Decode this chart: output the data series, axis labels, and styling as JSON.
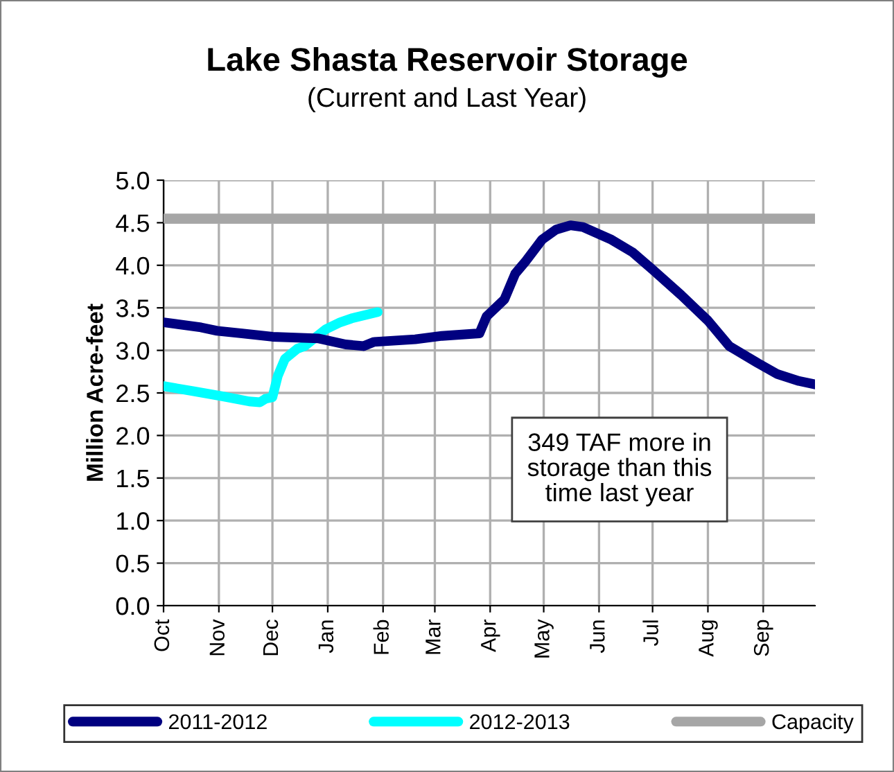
{
  "chart_data": {
    "type": "line",
    "title": "Lake Shasta Reservoir Storage",
    "subtitle": "(Current and Last Year)",
    "ylabel": "Million Acre-feet",
    "xlim": [
      "2011-10-01",
      "2012-09-30"
    ],
    "xticks": [
      {
        "value": "2011-10-01",
        "label": "Oct"
      },
      {
        "value": "2011-11-01",
        "label": "Nov"
      },
      {
        "value": "2011-12-01",
        "label": "Dec"
      },
      {
        "value": "2012-01-01",
        "label": "Jan"
      },
      {
        "value": "2012-02-01",
        "label": "Feb"
      },
      {
        "value": "2012-03-01",
        "label": "Mar"
      },
      {
        "value": "2012-04-01",
        "label": "Apr"
      },
      {
        "value": "2012-05-01",
        "label": "May"
      },
      {
        "value": "2012-06-01",
        "label": "Jun"
      },
      {
        "value": "2012-07-01",
        "label": "Jul"
      },
      {
        "value": "2012-08-01",
        "label": "Aug"
      },
      {
        "value": "2012-09-01",
        "label": "Sep"
      }
    ],
    "ylim": [
      0,
      5
    ],
    "yticks": [
      {
        "value": 0,
        "label": "0.0"
      },
      {
        "value": 0.5,
        "label": "0.5"
      },
      {
        "value": 1,
        "label": "1.0"
      },
      {
        "value": 1.5,
        "label": "1.5"
      },
      {
        "value": 2,
        "label": "2.0"
      },
      {
        "value": 2.5,
        "label": "2.5"
      },
      {
        "value": 3,
        "label": "3.0"
      },
      {
        "value": 3.5,
        "label": "3.5"
      },
      {
        "value": 4,
        "label": "4.0"
      },
      {
        "value": 4.5,
        "label": "4.5"
      },
      {
        "value": 5,
        "label": "5.0"
      }
    ],
    "grid": true,
    "legend": "bottom",
    "marker": "none",
    "line_style": "solid",
    "series": [
      {
        "name": "2011-2012",
        "color": "#000080",
        "x": [
          "2011-10-01",
          "2011-10-22",
          "2011-10-31",
          "2011-11-14",
          "2011-12-01",
          "2011-12-27",
          "2012-01-11",
          "2012-01-21",
          "2012-01-27",
          "2012-02-19",
          "2012-03-05",
          "2012-03-26",
          "2012-03-30",
          "2012-04-04",
          "2012-04-09",
          "2012-04-15",
          "2012-04-21",
          "2012-04-30",
          "2012-05-08",
          "2012-05-16",
          "2012-05-23",
          "2012-06-08",
          "2012-06-20",
          "2012-07-01",
          "2012-07-17",
          "2012-08-01",
          "2012-08-13",
          "2012-08-29",
          "2012-09-09",
          "2012-09-21",
          "2012-09-30"
        ],
        "values": [
          3.33,
          3.27,
          3.23,
          3.2,
          3.16,
          3.14,
          3.07,
          3.05,
          3.1,
          3.13,
          3.17,
          3.2,
          3.4,
          3.5,
          3.6,
          3.9,
          4.05,
          4.3,
          4.42,
          4.47,
          4.45,
          4.3,
          4.15,
          3.95,
          3.65,
          3.35,
          3.05,
          2.85,
          2.72,
          2.64,
          2.6
        ]
      },
      {
        "name": "2012-2013",
        "color": "#00ffff",
        "x": [
          "2011-10-01",
          "2011-10-18",
          "2011-11-03",
          "2011-11-18",
          "2011-11-24",
          "2011-11-27",
          "2011-12-01",
          "2011-12-04",
          "2011-12-08",
          "2011-12-15",
          "2011-12-19",
          "2011-12-25",
          "2011-12-31",
          "2012-01-08",
          "2012-01-15",
          "2012-01-23",
          "2012-01-29"
        ],
        "values": [
          2.58,
          2.52,
          2.46,
          2.4,
          2.39,
          2.43,
          2.45,
          2.7,
          2.9,
          3.02,
          3.05,
          3.15,
          3.25,
          3.33,
          3.38,
          3.42,
          3.45
        ]
      },
      {
        "name": "Capacity",
        "color": "#a6a6a6",
        "x": [
          "2011-10-01",
          "2012-09-30"
        ],
        "values": [
          4.55,
          4.55
        ]
      }
    ],
    "annotations": [
      "349 TAF more in\nstorage than this\ntime last year"
    ]
  }
}
